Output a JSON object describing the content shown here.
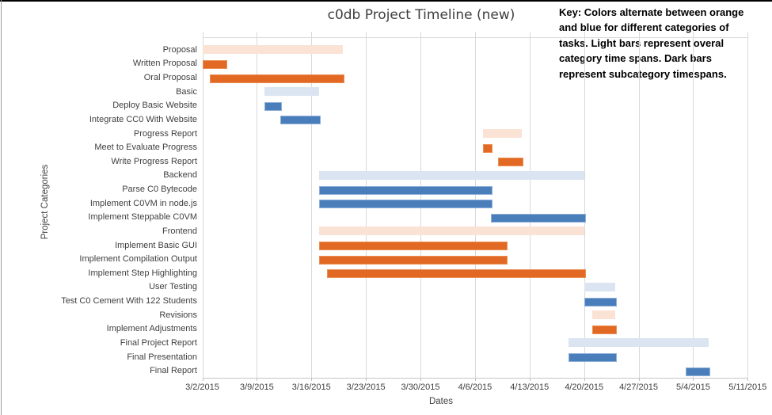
{
  "title": "c0db Project Timeline (new)",
  "key_note": {
    "lines": [
      "Key: Colors alternate between orange",
      "and blue for different categories of",
      "tasks. Light bars represent overal",
      "category time spans. Dark bars",
      "represent subcategory timespans."
    ]
  },
  "chart_data": {
    "type": "bar",
    "subtype": "gantt-horizontal",
    "title": "c0db Project Timeline (new)",
    "xlabel": "Dates",
    "ylabel": "Project Categories",
    "grid": "vertical-only",
    "x_axis": {
      "start": "3/2/2015",
      "end": "5/11/2015",
      "tick_labels": [
        "3/2/2015",
        "3/9/2015",
        "3/16/2015",
        "3/23/2015",
        "3/30/2015",
        "4/6/2015",
        "4/13/2015",
        "4/20/2015",
        "4/27/2015",
        "5/4/2015",
        "5/11/2015"
      ]
    },
    "bar_styles": {
      "light_orange": {
        "fill": "#FAE3D5",
        "border": "none"
      },
      "dark_orange": {
        "fill": "#E26923",
        "border": "#EB8F55"
      },
      "light_blue": {
        "fill": "#DBE5F1",
        "border": "none"
      },
      "dark_blue": {
        "fill": "#4A7EBB",
        "border": "#8FAFD9"
      }
    },
    "colors": {
      "gridline": "#D9D9D9",
      "axis_line": "#C6C6C6",
      "axis_text": "#404040"
    },
    "rows": [
      {
        "label": "Proposal",
        "start": "3/2/2015",
        "end": "3/20/2015",
        "style": "light_orange",
        "kind": "category"
      },
      {
        "label": "Written Proposal",
        "start": "3/2/2015",
        "end": "3/5/2015",
        "style": "dark_orange",
        "kind": "subcategory"
      },
      {
        "label": "Oral Proposal",
        "start": "3/3/2015",
        "end": "3/20/2015",
        "style": "dark_orange",
        "kind": "subcategory"
      },
      {
        "label": "Basic",
        "start": "3/10/2015",
        "end": "3/17/2015",
        "style": "light_blue",
        "kind": "category"
      },
      {
        "label": "Deploy Basic Website",
        "start": "3/10/2015",
        "end": "3/12/2015",
        "style": "dark_blue",
        "kind": "subcategory"
      },
      {
        "label": "Integrate CC0 With Website",
        "start": "3/12/2015",
        "end": "3/17/2015",
        "style": "dark_blue",
        "kind": "subcategory"
      },
      {
        "label": "Progress Report",
        "start": "4/7/2015",
        "end": "4/12/2015",
        "style": "light_orange",
        "kind": "category"
      },
      {
        "label": "Meet to Evaluate Progress",
        "start": "4/7/2015",
        "end": "4/8/2015",
        "style": "dark_orange",
        "kind": "subcategory"
      },
      {
        "label": "Write Progress Report",
        "start": "4/9/2015",
        "end": "4/12/2015",
        "style": "dark_orange",
        "kind": "subcategory"
      },
      {
        "label": "Backend",
        "start": "3/17/2015",
        "end": "4/20/2015",
        "style": "light_blue",
        "kind": "category"
      },
      {
        "label": "Parse C0 Bytecode",
        "start": "3/17/2015",
        "end": "4/8/2015",
        "style": "dark_blue",
        "kind": "subcategory"
      },
      {
        "label": "Implement C0VM in node.js",
        "start": "3/17/2015",
        "end": "4/8/2015",
        "style": "dark_blue",
        "kind": "subcategory"
      },
      {
        "label": "Implement Steppable C0VM",
        "start": "4/8/2015",
        "end": "4/20/2015",
        "style": "dark_blue",
        "kind": "subcategory"
      },
      {
        "label": "Frontend",
        "start": "3/17/2015",
        "end": "4/20/2015",
        "style": "light_orange",
        "kind": "category"
      },
      {
        "label": "Implement Basic GUI",
        "start": "3/17/2015",
        "end": "4/10/2015",
        "style": "dark_orange",
        "kind": "subcategory"
      },
      {
        "label": "Implement Compilation Output",
        "start": "3/17/2015",
        "end": "4/10/2015",
        "style": "dark_orange",
        "kind": "subcategory"
      },
      {
        "label": "Implement Step Highlighting",
        "start": "3/18/2015",
        "end": "4/20/2015",
        "style": "dark_orange",
        "kind": "subcategory"
      },
      {
        "label": "User Testing",
        "start": "4/20/2015",
        "end": "4/24/2015",
        "style": "light_blue",
        "kind": "category"
      },
      {
        "label": "Test C0 Cement With 122 Students",
        "start": "4/20/2015",
        "end": "4/24/2015",
        "style": "dark_blue",
        "kind": "subcategory"
      },
      {
        "label": "Revisions",
        "start": "4/21/2015",
        "end": "4/24/2015",
        "style": "light_orange",
        "kind": "category"
      },
      {
        "label": "Implement Adjustments",
        "start": "4/21/2015",
        "end": "4/24/2015",
        "style": "dark_orange",
        "kind": "subcategory"
      },
      {
        "label": "Final Project Report",
        "start": "4/18/2015",
        "end": "5/6/2015",
        "style": "light_blue",
        "kind": "category"
      },
      {
        "label": "Final Presentation",
        "start": "4/18/2015",
        "end": "4/24/2015",
        "style": "dark_blue",
        "kind": "subcategory"
      },
      {
        "label": "Final Report",
        "start": "5/3/2015",
        "end": "5/6/2015",
        "style": "dark_blue",
        "kind": "subcategory"
      }
    ]
  }
}
